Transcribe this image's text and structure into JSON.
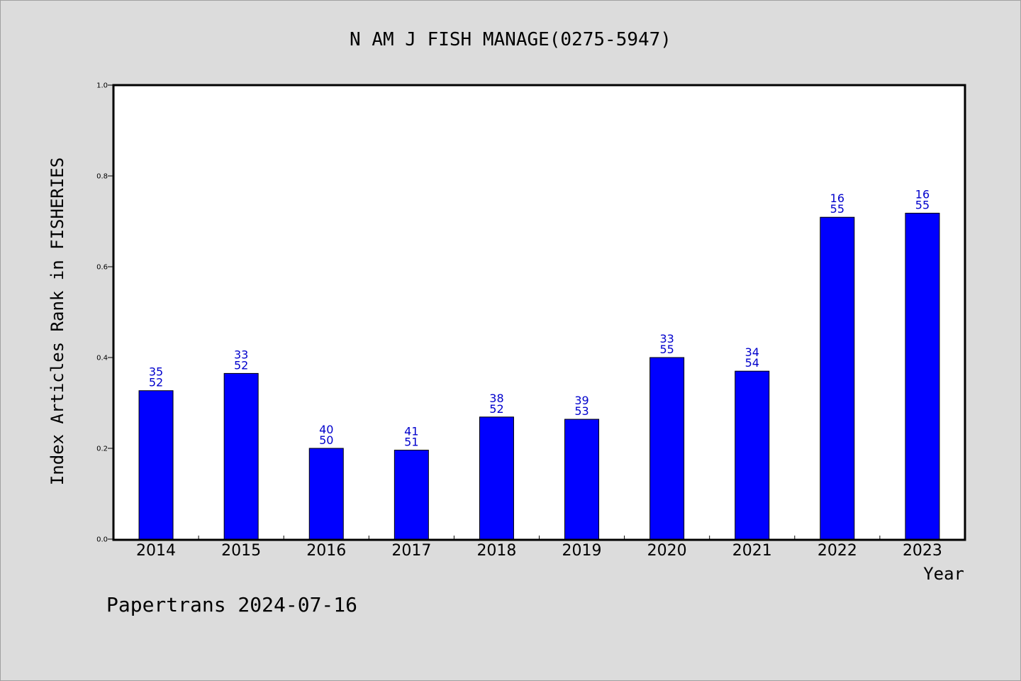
{
  "chart_data": {
    "type": "bar",
    "title": "N AM J FISH MANAGE(0275-5947)",
    "xlabel": "Year",
    "ylabel": "Index Articles Rank in FISHERIES",
    "ylim": [
      0.0,
      1.0
    ],
    "yticks": [
      "0.0",
      "0.2",
      "0.4",
      "0.6",
      "0.8",
      "1.0"
    ],
    "categories": [
      "2014",
      "2015",
      "2016",
      "2017",
      "2018",
      "2019",
      "2020",
      "2021",
      "2022",
      "2023"
    ],
    "values": [
      0.327,
      0.365,
      0.2,
      0.196,
      0.269,
      0.264,
      0.4,
      0.37,
      0.709,
      0.718
    ],
    "labels_top": [
      "35",
      "33",
      "40",
      "41",
      "38",
      "39",
      "33",
      "34",
      "16",
      "16"
    ],
    "labels_bottom": [
      "52",
      "52",
      "50",
      "51",
      "52",
      "53",
      "55",
      "54",
      "55",
      "55"
    ],
    "bar_color": "#0000ff",
    "label_color": "#0000cc",
    "grid": false,
    "legend": "none"
  },
  "footer": "Papertrans 2024-07-16"
}
